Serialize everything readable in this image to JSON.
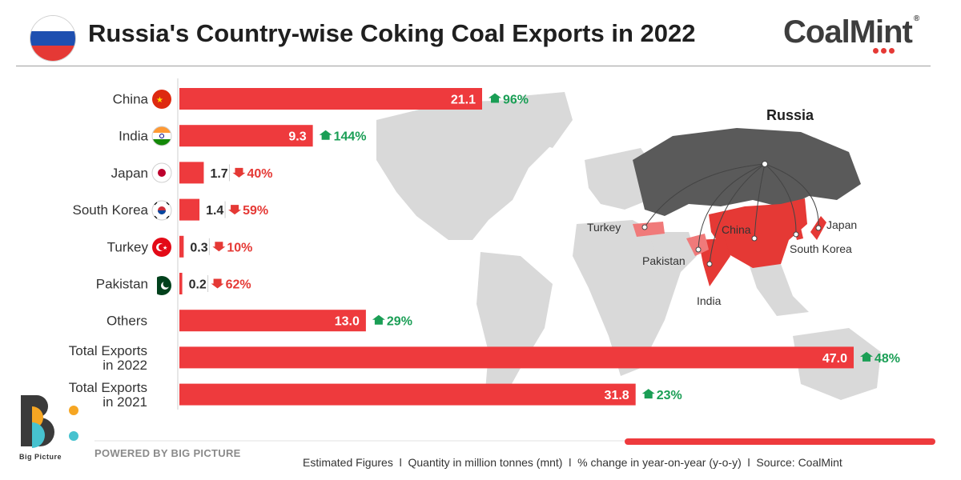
{
  "header": {
    "title": "Russia's Country-wise Coking Coal Exports in 2022",
    "brand": "CoalMint",
    "brand_mark": "®"
  },
  "colors": {
    "bar": "#ee3a3d",
    "up": "#1a9e55",
    "down": "#e53935",
    "russia": "#5a5a5a",
    "importer": "#e53935",
    "importer_light": "#f07a7a",
    "land": "#d9d9d9"
  },
  "chart_data": {
    "type": "bar",
    "orientation": "horizontal",
    "unit": "million tonnes (mnt)",
    "categories": [
      "China",
      "India",
      "Japan",
      "South Korea",
      "Turkey",
      "Pakistan",
      "Others",
      "Total Exports\nin 2022",
      "Total Exports\nin 2021"
    ],
    "values": [
      21.1,
      9.3,
      1.7,
      1.4,
      0.3,
      0.2,
      13.0,
      47.0,
      31.8
    ],
    "value_labels": [
      "21.1",
      "9.3",
      "1.7",
      "1.4",
      "0.3",
      "0.2",
      "13.0",
      "47.0",
      "31.8"
    ],
    "change_labels": [
      "96%",
      "144%",
      "40%",
      "59%",
      "10%",
      "62%",
      "29%",
      "48%",
      "23%"
    ],
    "change_direction": [
      "up",
      "up",
      "down",
      "down",
      "down",
      "down",
      "up",
      "up",
      "up"
    ],
    "flags": [
      "china",
      "india",
      "japan",
      "south-korea",
      "turkey",
      "pakistan",
      "",
      "",
      ""
    ],
    "xlim": [
      0,
      47
    ]
  },
  "map": {
    "labels": [
      "Russia",
      "China",
      "India",
      "Japan",
      "South Korea",
      "Turkey",
      "Pakistan"
    ]
  },
  "footer": {
    "powered": "POWERED BY BIG PICTURE",
    "logo_text": "Big Picture",
    "note": "Estimated Figures  l  Quantity in million tonnes (mnt)  l  % change in year-on-year (y-o-y)  l  Source: CoalMint"
  }
}
